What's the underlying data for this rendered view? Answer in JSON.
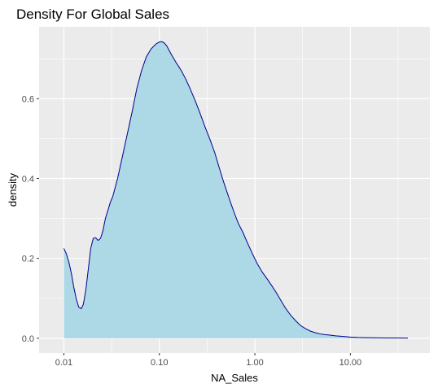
{
  "chart_data": {
    "type": "area",
    "title": "Density For Global Sales",
    "xlabel": "NA_Sales",
    "ylabel": "density",
    "x_scale": "log10",
    "xlim": [
      0.01,
      40
    ],
    "ylim": [
      0,
      0.75
    ],
    "x_ticks": [
      {
        "value": 0.01,
        "label": "0.01"
      },
      {
        "value": 0.1,
        "label": "0.10"
      },
      {
        "value": 1,
        "label": "1.00"
      },
      {
        "value": 10,
        "label": "10.00"
      }
    ],
    "y_ticks": [
      {
        "value": 0.0,
        "label": "0.0"
      },
      {
        "value": 0.2,
        "label": "0.2"
      },
      {
        "value": 0.4,
        "label": "0.4"
      },
      {
        "value": 0.6,
        "label": "0.6"
      }
    ],
    "grid": true,
    "background": "#ebebeb",
    "fill_color": "#add8e6",
    "line_color": "#00008b",
    "series": [
      {
        "x": [
          0.01,
          0.0106,
          0.0113,
          0.012,
          0.0127,
          0.0135,
          0.0143,
          0.0152,
          0.016,
          0.017,
          0.018,
          0.0191,
          0.0203,
          0.0215,
          0.0228,
          0.0242,
          0.0257,
          0.0272,
          0.0289,
          0.0306,
          0.0325,
          0.0365,
          0.041,
          0.046,
          0.0516,
          0.058,
          0.065,
          0.073,
          0.082,
          0.092,
          0.1,
          0.106,
          0.112,
          0.119,
          0.126,
          0.134,
          0.142,
          0.15,
          0.16,
          0.17,
          0.19,
          0.21,
          0.24,
          0.27,
          0.3,
          0.34,
          0.38,
          0.42,
          0.47,
          0.53,
          0.6,
          0.67,
          0.75,
          0.84,
          0.95,
          1.07,
          1.2,
          1.35,
          1.5,
          1.7,
          1.9,
          2.1,
          2.4,
          2.7,
          3.0,
          3.4,
          3.8,
          4.3,
          4.8,
          5.4,
          6.0,
          7.0,
          8.0,
          10.0,
          12.0,
          15.0,
          20.0,
          25.0,
          30.0,
          40.0
        ],
        "y": [
          0.225,
          0.212,
          0.19,
          0.162,
          0.128,
          0.098,
          0.078,
          0.074,
          0.085,
          0.122,
          0.172,
          0.225,
          0.25,
          0.252,
          0.245,
          0.25,
          0.27,
          0.3,
          0.32,
          0.34,
          0.355,
          0.4,
          0.455,
          0.51,
          0.565,
          0.625,
          0.67,
          0.705,
          0.725,
          0.737,
          0.742,
          0.743,
          0.74,
          0.733,
          0.722,
          0.71,
          0.7,
          0.69,
          0.68,
          0.67,
          0.648,
          0.625,
          0.592,
          0.56,
          0.53,
          0.497,
          0.465,
          0.43,
          0.392,
          0.355,
          0.318,
          0.288,
          0.265,
          0.238,
          0.21,
          0.185,
          0.165,
          0.148,
          0.132,
          0.112,
          0.092,
          0.075,
          0.056,
          0.043,
          0.032,
          0.024,
          0.018,
          0.014,
          0.011,
          0.009,
          0.008,
          0.006,
          0.005,
          0.003,
          0.002,
          0.0015,
          0.001,
          0.0008,
          0.0006,
          0.0004
        ]
      }
    ]
  }
}
